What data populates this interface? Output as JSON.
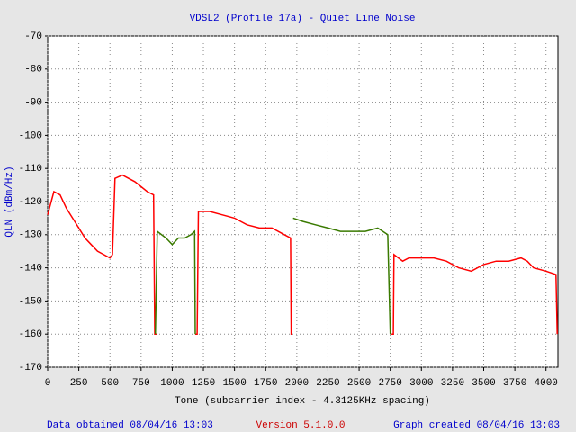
{
  "chart_data": {
    "type": "line",
    "title": "VDSL2 (Profile 17a) - Quiet Line Noise",
    "x_label": "Tone (subcarrier index - 4.3125KHz spacing)",
    "y_label": "QLN (dBm/Hz)",
    "footer_left": "Data obtained 08/04/16 13:03",
    "footer_center": "Version 5.1.0.0",
    "footer_right": "Graph created 08/04/16 13:03",
    "xlim": [
      0,
      4096
    ],
    "ylim": [
      -170,
      -70
    ],
    "xticks": [
      0,
      250,
      500,
      750,
      1000,
      1250,
      1500,
      1750,
      2000,
      2250,
      2500,
      2750,
      3000,
      3250,
      3500,
      3750,
      4000
    ],
    "yticks": [
      -70,
      -80,
      -90,
      -100,
      -110,
      -120,
      -130,
      -140,
      -150,
      -160,
      -170
    ],
    "grid": true,
    "series": [
      {
        "color": "#ff0000",
        "x": [
          0,
          50,
          100,
          150,
          200,
          250,
          300,
          350,
          400,
          450,
          500,
          520,
          540,
          600,
          700,
          800,
          850,
          860,
          880,
          null,
          1185,
          1200,
          1210,
          1300,
          1400,
          1500,
          1600,
          1700,
          1800,
          1900,
          1950,
          1955,
          1965,
          null,
          2760,
          2775,
          2780,
          2850,
          2900,
          3000,
          3100,
          3200,
          3300,
          3400,
          3450,
          3500,
          3600,
          3700,
          3800,
          3850,
          3900,
          4000,
          4080,
          4090
        ],
        "values": [
          -124,
          -117,
          -118,
          -122,
          -125,
          -128,
          -131,
          -133,
          -135,
          -136,
          -137,
          -136,
          -113,
          -112,
          -114,
          -117,
          -118,
          -160,
          -160,
          null,
          -160,
          -160,
          -123,
          -123,
          -124,
          -125,
          -127,
          -128,
          -128,
          -130,
          -131,
          -160,
          -160,
          null,
          -160,
          -160,
          -136,
          -138,
          -137,
          -137,
          -137,
          -138,
          -140,
          -141,
          -140,
          -139,
          -138,
          -138,
          -137,
          -138,
          -140,
          -141,
          -142,
          -160
        ]
      },
      {
        "color": "#3a7a00",
        "x": [
          865,
          880,
          950,
          1000,
          1050,
          1100,
          1150,
          1180,
          1185,
          null,
          1970,
          2050,
          2150,
          2250,
          2350,
          2450,
          2550,
          2650,
          2730,
          2750
        ],
        "values": [
          -160,
          -129,
          -131,
          -133,
          -131,
          -131,
          -130,
          -129,
          -160,
          null,
          -125,
          -126,
          -127,
          -128,
          -129,
          -129,
          -129,
          -128,
          -130,
          -160
        ]
      }
    ]
  }
}
